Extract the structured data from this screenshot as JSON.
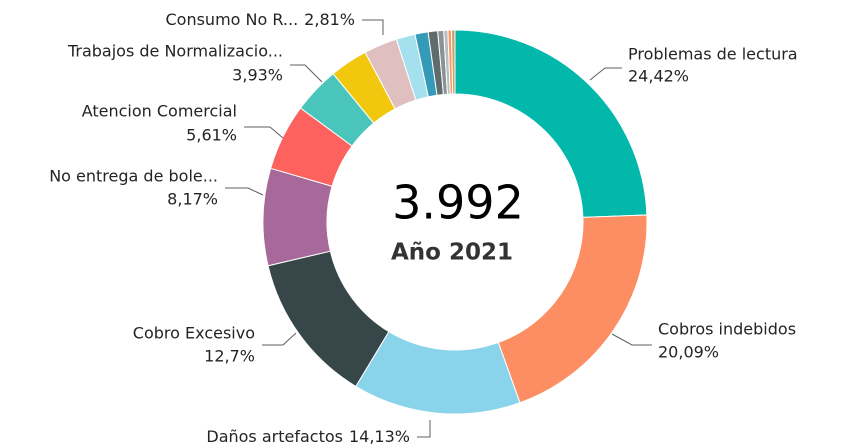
{
  "chart_data": {
    "type": "donut",
    "center_value": 3992,
    "center_value_label": "3.992",
    "center_caption": "Año 2021",
    "categories": [
      "Problemas de lectura",
      "Cobros indebidos",
      "Daños artefactos",
      "Cobro Excesivo",
      "No entrega de bole...",
      "Atencion Comercial",
      "Trabajos de Normalizacio...",
      null,
      "Consumo No R...",
      null,
      null,
      null,
      null,
      null,
      null,
      null
    ],
    "values": [
      24.42,
      20.09,
      14.13,
      12.7,
      8.17,
      5.61,
      3.93,
      3.2,
      2.81,
      1.6,
      1.1,
      0.8,
      0.5,
      0.35,
      0.3,
      0.29
    ],
    "value_labels": [
      "24,42%",
      "20,09%",
      "14,13%",
      "12,7%",
      "8,17%",
      "5,61%",
      "3,93%",
      null,
      "2,81%",
      null,
      null,
      null,
      null,
      null,
      null,
      null
    ],
    "colors": [
      "#01b8aa",
      "#fd8d62",
      "#8ad4eb",
      "#374649",
      "#a66999",
      "#fd625e",
      "#4ac5bb",
      "#f2c80f",
      "#dfbfbf",
      "#a5e0ef",
      "#3599b8",
      "#5f6b6d",
      "#8a9294",
      "#b8bec0",
      "#fe9666",
      "#c5a567"
    ]
  }
}
